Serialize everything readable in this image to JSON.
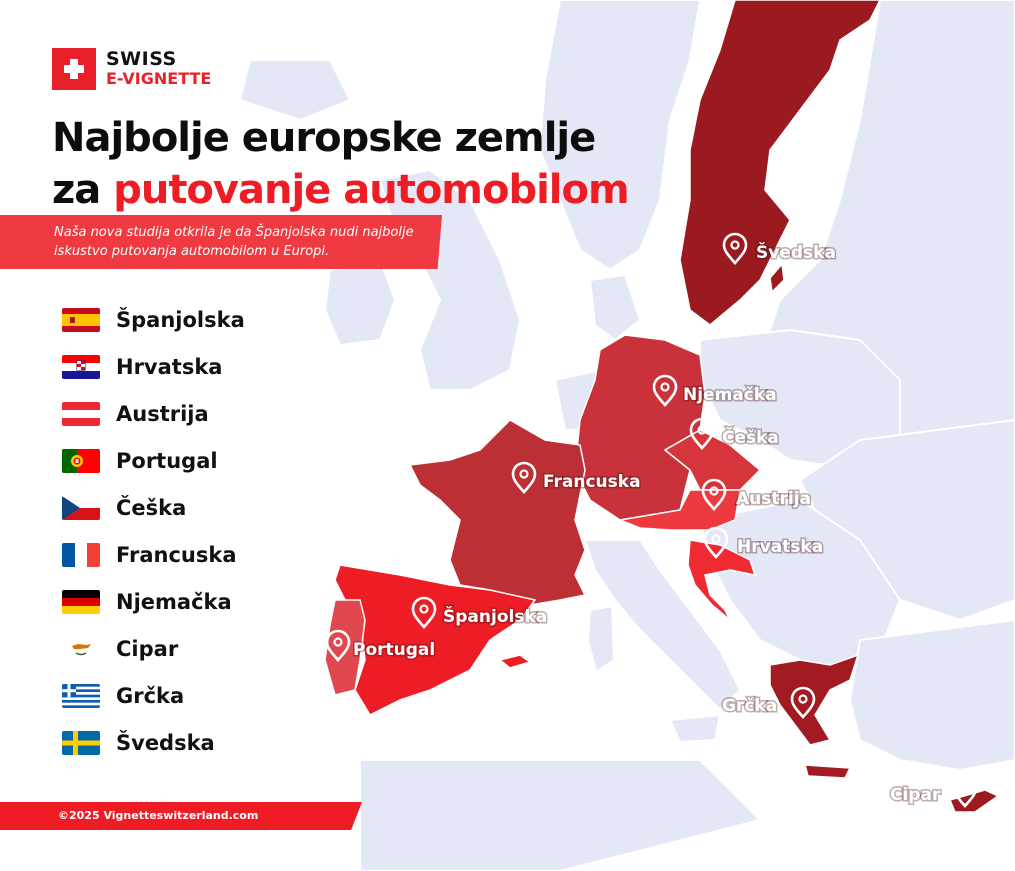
{
  "brand": {
    "line1": "SWISS",
    "line2": "E-VIGNETTE"
  },
  "title": {
    "line1": "Najbolje europske zemlje",
    "line2_prefix": "za ",
    "line2_accent": "putovanje automobilom"
  },
  "subtitle": "Naša nova studija otkrila je da Španjolska nudi najbolje iskustvo putovanja automobilom u Europi.",
  "ranking": [
    {
      "name": "Španjolska",
      "flag": "spain-flag-icon"
    },
    {
      "name": "Hrvatska",
      "flag": "croatia-flag-icon"
    },
    {
      "name": "Austrija",
      "flag": "austria-flag-icon"
    },
    {
      "name": "Portugal",
      "flag": "portugal-flag-icon"
    },
    {
      "name": "Češka",
      "flag": "czechia-flag-icon"
    },
    {
      "name": "Francuska",
      "flag": "france-flag-icon"
    },
    {
      "name": "Njemačka",
      "flag": "germany-flag-icon"
    },
    {
      "name": "Cipar",
      "flag": "cyprus-flag-icon"
    },
    {
      "name": "Grčka",
      "flag": "greece-flag-icon"
    },
    {
      "name": "Švedska",
      "flag": "sweden-flag-icon"
    }
  ],
  "map_labels": {
    "sweden": "Švedska",
    "germany": "Njemačka",
    "czechia": "Češka",
    "france": "Francuska",
    "austria": "Austrija",
    "croatia": "Hrvatska",
    "spain": "Španjolska",
    "portugal": "Portugal",
    "greece": "Grčka",
    "cyprus": "Cipar"
  },
  "footer": "©2025 Vignetteswitzerland.com",
  "colors": {
    "brand_red": "#ee1c25",
    "land": "#e3e7f6",
    "sea": "#ffffff",
    "spain": "#ee1c25",
    "portugal": "#e0474e",
    "france": "#bc2f35",
    "germany": "#c9323a",
    "czechia": "#d6353c",
    "austria": "#ec3a3f",
    "croatia": "#ef2a32",
    "greece": "#a21a22",
    "sweden": "#9b1a20",
    "cyprus": "#9b1a20"
  }
}
